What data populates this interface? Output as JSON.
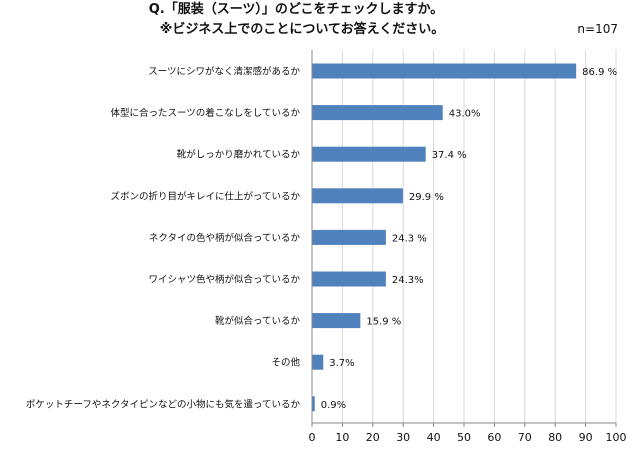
{
  "chart_data": {
    "type": "bar",
    "orientation": "horizontal",
    "title": "Q.「服装（スーツ）」のどこをチェックしますか。",
    "subtitle": "※ビジネス上でのことについてお答えください。",
    "sample_size": "n=107",
    "categories": [
      "スーツにシワがなく清潔感があるか",
      "体型に合ったスーツの着こなしをしているか",
      "靴がしっかり磨かれているか",
      "ズボンの折り目がキレイに仕上がっているか",
      "ネクタイの色や柄が似合っているか",
      "ワイシャツ色や柄が似合っているか",
      "靴が似合っているか",
      "その他",
      "ポケットチーフやネクタイピンなどの小物にも気を遣っているか"
    ],
    "values": [
      86.9,
      43.0,
      37.4,
      29.9,
      24.3,
      24.3,
      15.9,
      3.7,
      0.9
    ],
    "value_labels": [
      "86.9 %",
      "43.0%",
      "37.4 %",
      "29.9 %",
      "24.3 %",
      "24.3%",
      "15.9 %",
      "3.7%",
      "0.9%"
    ],
    "xlim": [
      0,
      100
    ],
    "xticks": [
      0,
      10,
      20,
      30,
      40,
      50,
      60,
      70,
      80,
      90,
      100
    ],
    "bar_color": "#4f81bd",
    "xlabel": "",
    "ylabel": ""
  }
}
